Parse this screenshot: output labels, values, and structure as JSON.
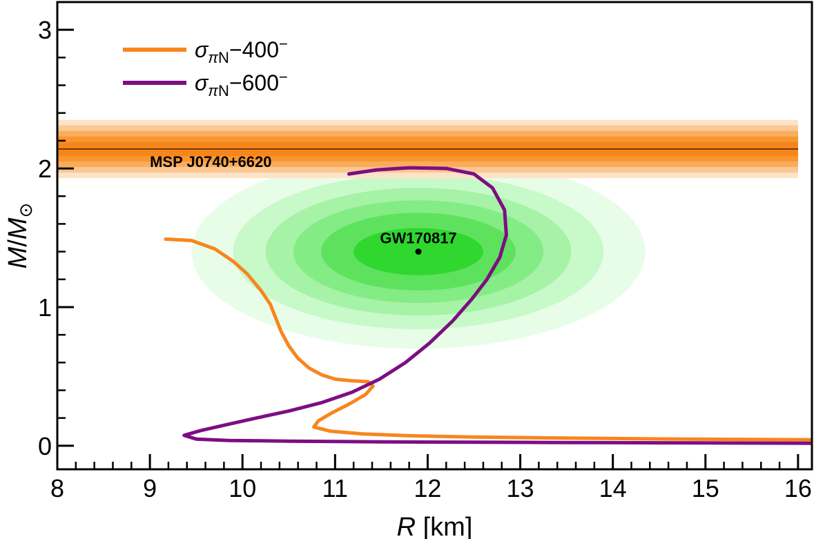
{
  "chart_data": {
    "type": "line",
    "title": "",
    "xlabel": {
      "var": "R",
      "unit": " [km]"
    },
    "ylabel": {
      "var": "M",
      "sep": "/",
      "sun": "M",
      "sun_sub": "⊙"
    },
    "xlim": [
      8,
      16.15
    ],
    "ylim": [
      -0.17,
      3.2
    ],
    "x_ticks": [
      8,
      9,
      10,
      11,
      12,
      13,
      14,
      15,
      16
    ],
    "y_ticks": [
      0,
      1,
      2,
      3
    ],
    "series": [
      {
        "name": "σπN-400⁻",
        "legend": {
          "sym": "σ",
          "sub": "πN",
          "rest": "−400",
          "sup": "−"
        },
        "color": "#f7861d",
        "points": [
          [
            9.17,
            1.49
          ],
          [
            9.45,
            1.48
          ],
          [
            9.7,
            1.42
          ],
          [
            9.9,
            1.33
          ],
          [
            10.05,
            1.24
          ],
          [
            10.2,
            1.12
          ],
          [
            10.3,
            1.02
          ],
          [
            10.36,
            0.92
          ],
          [
            10.42,
            0.82
          ],
          [
            10.5,
            0.72
          ],
          [
            10.6,
            0.63
          ],
          [
            10.72,
            0.56
          ],
          [
            10.86,
            0.51
          ],
          [
            11.0,
            0.48
          ],
          [
            11.18,
            0.468
          ],
          [
            11.36,
            0.462
          ],
          [
            11.41,
            0.43
          ],
          [
            11.33,
            0.37
          ],
          [
            11.15,
            0.3
          ],
          [
            10.96,
            0.235
          ],
          [
            10.82,
            0.18
          ],
          [
            10.77,
            0.135
          ],
          [
            10.95,
            0.105
          ],
          [
            11.3,
            0.085
          ],
          [
            11.8,
            0.072
          ],
          [
            12.5,
            0.063
          ],
          [
            13.5,
            0.055
          ],
          [
            14.5,
            0.049
          ],
          [
            15.5,
            0.045
          ],
          [
            16.15,
            0.043
          ]
        ]
      },
      {
        "name": "σπN-600⁻",
        "legend": {
          "sym": "σ",
          "sub": "πN",
          "rest": "−600",
          "sup": "−"
        },
        "color": "#7d0e82",
        "points": [
          [
            11.15,
            1.96
          ],
          [
            11.45,
            1.99
          ],
          [
            11.8,
            2.005
          ],
          [
            12.2,
            2.0
          ],
          [
            12.5,
            1.96
          ],
          [
            12.7,
            1.86
          ],
          [
            12.83,
            1.7
          ],
          [
            12.85,
            1.52
          ],
          [
            12.78,
            1.36
          ],
          [
            12.64,
            1.2
          ],
          [
            12.48,
            1.06
          ],
          [
            12.27,
            0.9
          ],
          [
            12.02,
            0.74
          ],
          [
            11.76,
            0.6
          ],
          [
            11.48,
            0.48
          ],
          [
            11.18,
            0.385
          ],
          [
            10.85,
            0.31
          ],
          [
            10.5,
            0.25
          ],
          [
            10.15,
            0.2
          ],
          [
            9.85,
            0.155
          ],
          [
            9.55,
            0.11
          ],
          [
            9.37,
            0.075
          ],
          [
            9.5,
            0.048
          ],
          [
            9.85,
            0.038
          ],
          [
            10.5,
            0.033
          ],
          [
            11.5,
            0.028
          ],
          [
            12.5,
            0.025
          ],
          [
            13.5,
            0.023
          ],
          [
            14.5,
            0.021
          ],
          [
            15.5,
            0.019
          ],
          [
            16.15,
            0.018
          ]
        ]
      }
    ],
    "bands": [
      {
        "name": "MSP J0740+6620",
        "label": "MSP J0740+6620",
        "center": 2.14,
        "x_range": [
          8,
          16
        ],
        "half_widths": [
          0.21,
          0.17,
          0.13,
          0.09,
          0.05
        ],
        "colors": [
          "#fde3c8",
          "#fbc892",
          "#f9ad5c",
          "#f8962f",
          "#f7861a"
        ],
        "line_color": "#000000"
      }
    ],
    "regions": [
      {
        "name": "GW170817",
        "label": "GW170817",
        "center": [
          11.9,
          1.4
        ],
        "radii": [
          [
            2.45,
            0.7
          ],
          [
            2.0,
            0.56
          ],
          [
            1.65,
            0.46
          ],
          [
            1.35,
            0.37
          ],
          [
            1.05,
            0.28
          ],
          [
            0.7,
            0.17
          ]
        ],
        "colors": [
          "#e8fde8",
          "#c8f9c8",
          "#a6f2a6",
          "#84ec84",
          "#5ee25e",
          "#2fd72f"
        ],
        "marker": [
          11.9,
          1.4
        ]
      }
    ]
  }
}
